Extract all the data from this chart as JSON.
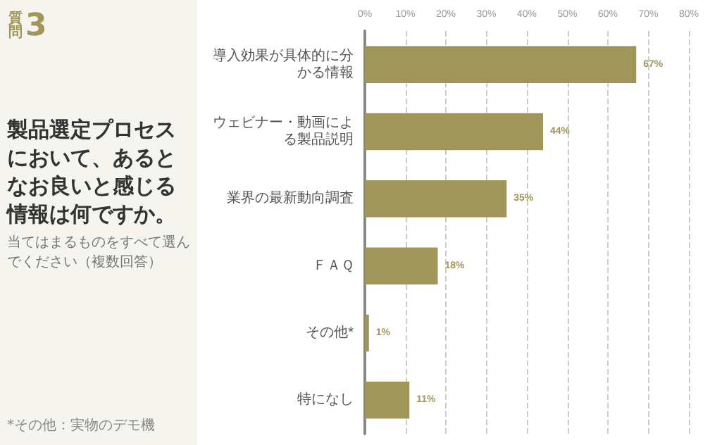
{
  "chart_data": {
    "type": "bar",
    "orientation": "horizontal",
    "title": "製品選定プロセスにおいて、あるとなお良いと感じる情報は何ですか。",
    "subtitle": "当てはまるものをすべて選んでください（複数回答）",
    "annotations": [
      "質問",
      "3",
      "*その他：実物のデモ機"
    ],
    "categories": [
      "導入効果が具体的に分かる情報",
      "ウェビナー・動画による製品説明",
      "業界の最新動向調査",
      "ＦＡＱ",
      "その他*",
      "特になし"
    ],
    "values": [
      67,
      44,
      35,
      18,
      1,
      11
    ],
    "value_labels": [
      "67%",
      "44%",
      "35%",
      "18%",
      "1%",
      "11%"
    ],
    "color": "#a0965a",
    "xlim": [
      0,
      80
    ],
    "xticks": [
      {
        "value": 0,
        "label": "0%"
      },
      {
        "value": 10,
        "label": "10%"
      },
      {
        "value": 20,
        "label": "20%"
      },
      {
        "value": 30,
        "label": "30%"
      },
      {
        "value": 40,
        "label": "40%"
      },
      {
        "value": 50,
        "label": "50%"
      },
      {
        "value": 60,
        "label": "60%"
      },
      {
        "value": 70,
        "label": "70%"
      },
      {
        "value": 80,
        "label": "80%"
      }
    ],
    "grid": "x"
  }
}
